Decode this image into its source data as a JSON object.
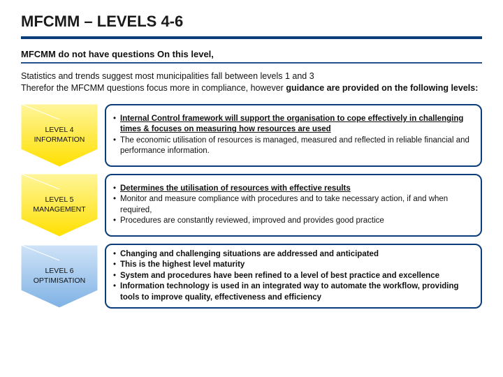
{
  "title": "MFCMM – LEVELS 4-6",
  "subheading": "MFCMM do not have questions On this level,",
  "intro_line1": "Statistics and trends suggest most municipalities fall between levels 1 and 3",
  "intro_line2_a": "Therefor the MFCMM  questions focus more in compliance, however ",
  "intro_line2_b": "guidance are provided on the following levels:",
  "colors": {
    "rule": "#0a3d7a",
    "box_border": "#0a3d7a",
    "chev_yellow_light": "#fff59a",
    "chev_yellow_dark": "#ffe000",
    "chev_blue_light": "#cfe3f7",
    "chev_blue_dark": "#7fb2e5",
    "text": "#111111",
    "background": "#ffffff"
  },
  "levels": [
    {
      "label_line1": "LEVEL 4",
      "label_line2": "INFORMATION",
      "chev_color": "yellow",
      "bullets": [
        {
          "html": "<span class='b u'>Internal Control framework will support the organisation to cope effectively in challenging times & focuses on measuring how resources are used</span>"
        },
        {
          "html": "The economic utilisation of resources is managed, measured and reflected in reliable financial and performance information."
        }
      ]
    },
    {
      "label_line1": "LEVEL 5",
      "label_line2": "MANAGEMENT",
      "chev_color": "yellow",
      "bullets": [
        {
          "html": "<span class='b u'>Determines the utilisation of resources with effective results</span>"
        },
        {
          "html": "Monitor and measure compliance with procedures and to take necessary action, if and when required,"
        },
        {
          "html": "Procedures are constantly reviewed, improved and provides good practice"
        }
      ]
    },
    {
      "label_line1": "LEVEL 6",
      "label_line2": "OPTIMISATION",
      "chev_color": "blue",
      "bullets": [
        {
          "html": "<span class='b'>Changing and challenging situations are addressed and anticipated</span>"
        },
        {
          "html": "<span class='b'>This is the highest level maturity</span>"
        },
        {
          "html": "<span class='b'>System and procedures have been refined to a level of best practice and excellence</span>"
        },
        {
          "html": "<span class='b'>Information technology is used in an integrated way to automate the workflow, providing tools to improve quality, effectiveness and efficiency</span>"
        }
      ]
    }
  ]
}
